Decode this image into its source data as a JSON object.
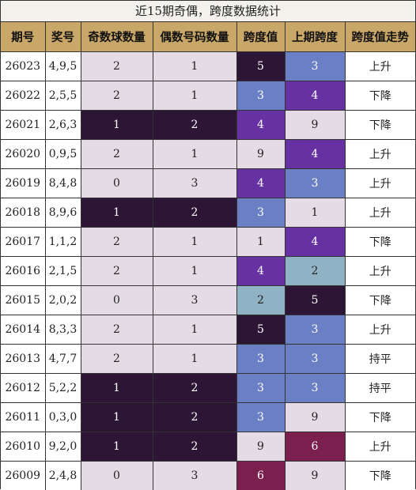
{
  "title": "近15期奇偶，跨度数据统计",
  "headers": [
    "期号",
    "奖号",
    "奇数球数量",
    "偶数号码数量",
    "跨度值",
    "上期跨度",
    "跨度值走势"
  ],
  "rows": [
    {
      "period": "26023",
      "numbers": "4,9,5",
      "odd": "2",
      "even": "1",
      "span": "5",
      "prev_span": "3",
      "trend": "上升"
    },
    {
      "period": "26022",
      "numbers": "2,5,5",
      "odd": "2",
      "even": "1",
      "span": "3",
      "prev_span": "4",
      "trend": "下降"
    },
    {
      "period": "26021",
      "numbers": "2,6,3",
      "odd": "1",
      "even": "2",
      "span": "4",
      "prev_span": "9",
      "trend": "下降"
    },
    {
      "period": "26020",
      "numbers": "0,9,5",
      "odd": "2",
      "even": "1",
      "span": "9",
      "prev_span": "4",
      "trend": "上升"
    },
    {
      "period": "26019",
      "numbers": "8,4,8",
      "odd": "0",
      "even": "3",
      "span": "4",
      "prev_span": "3",
      "trend": "上升"
    },
    {
      "period": "26018",
      "numbers": "8,9,6",
      "odd": "1",
      "even": "2",
      "span": "3",
      "prev_span": "1",
      "trend": "上升"
    },
    {
      "period": "26017",
      "numbers": "1,1,2",
      "odd": "2",
      "even": "1",
      "span": "1",
      "prev_span": "4",
      "trend": "下降"
    },
    {
      "period": "26016",
      "numbers": "2,1,5",
      "odd": "2",
      "even": "1",
      "span": "4",
      "prev_span": "2",
      "trend": "上升"
    },
    {
      "period": "26015",
      "numbers": "2,0,2",
      "odd": "0",
      "even": "3",
      "span": "2",
      "prev_span": "5",
      "trend": "下降"
    },
    {
      "period": "26014",
      "numbers": "8,3,3",
      "odd": "2",
      "even": "1",
      "span": "5",
      "prev_span": "3",
      "trend": "上升"
    },
    {
      "period": "26013",
      "numbers": "4,7,7",
      "odd": "2",
      "even": "1",
      "span": "3",
      "prev_span": "3",
      "trend": "持平"
    },
    {
      "period": "26012",
      "numbers": "5,2,2",
      "odd": "1",
      "even": "2",
      "span": "3",
      "prev_span": "3",
      "trend": "持平"
    },
    {
      "period": "26011",
      "numbers": "0,3,0",
      "odd": "1",
      "even": "2",
      "span": "3",
      "prev_span": "9",
      "trend": "下降"
    },
    {
      "period": "26010",
      "numbers": "9,2,0",
      "odd": "1",
      "even": "2",
      "span": "9",
      "prev_span": "6",
      "trend": "上升"
    },
    {
      "period": "26009",
      "numbers": "2,4,8",
      "odd": "0",
      "even": "3",
      "span": "6",
      "prev_span": "9",
      "trend": "下降"
    }
  ],
  "palette": {
    "header_bg": "#c9a768",
    "light": "#e4dbe5",
    "dark": "#2c1535",
    "blue": "#6b7fc4",
    "purple": "#6631a0",
    "teal": "#8fb3c5",
    "maroon": "#7a1f4e"
  }
}
